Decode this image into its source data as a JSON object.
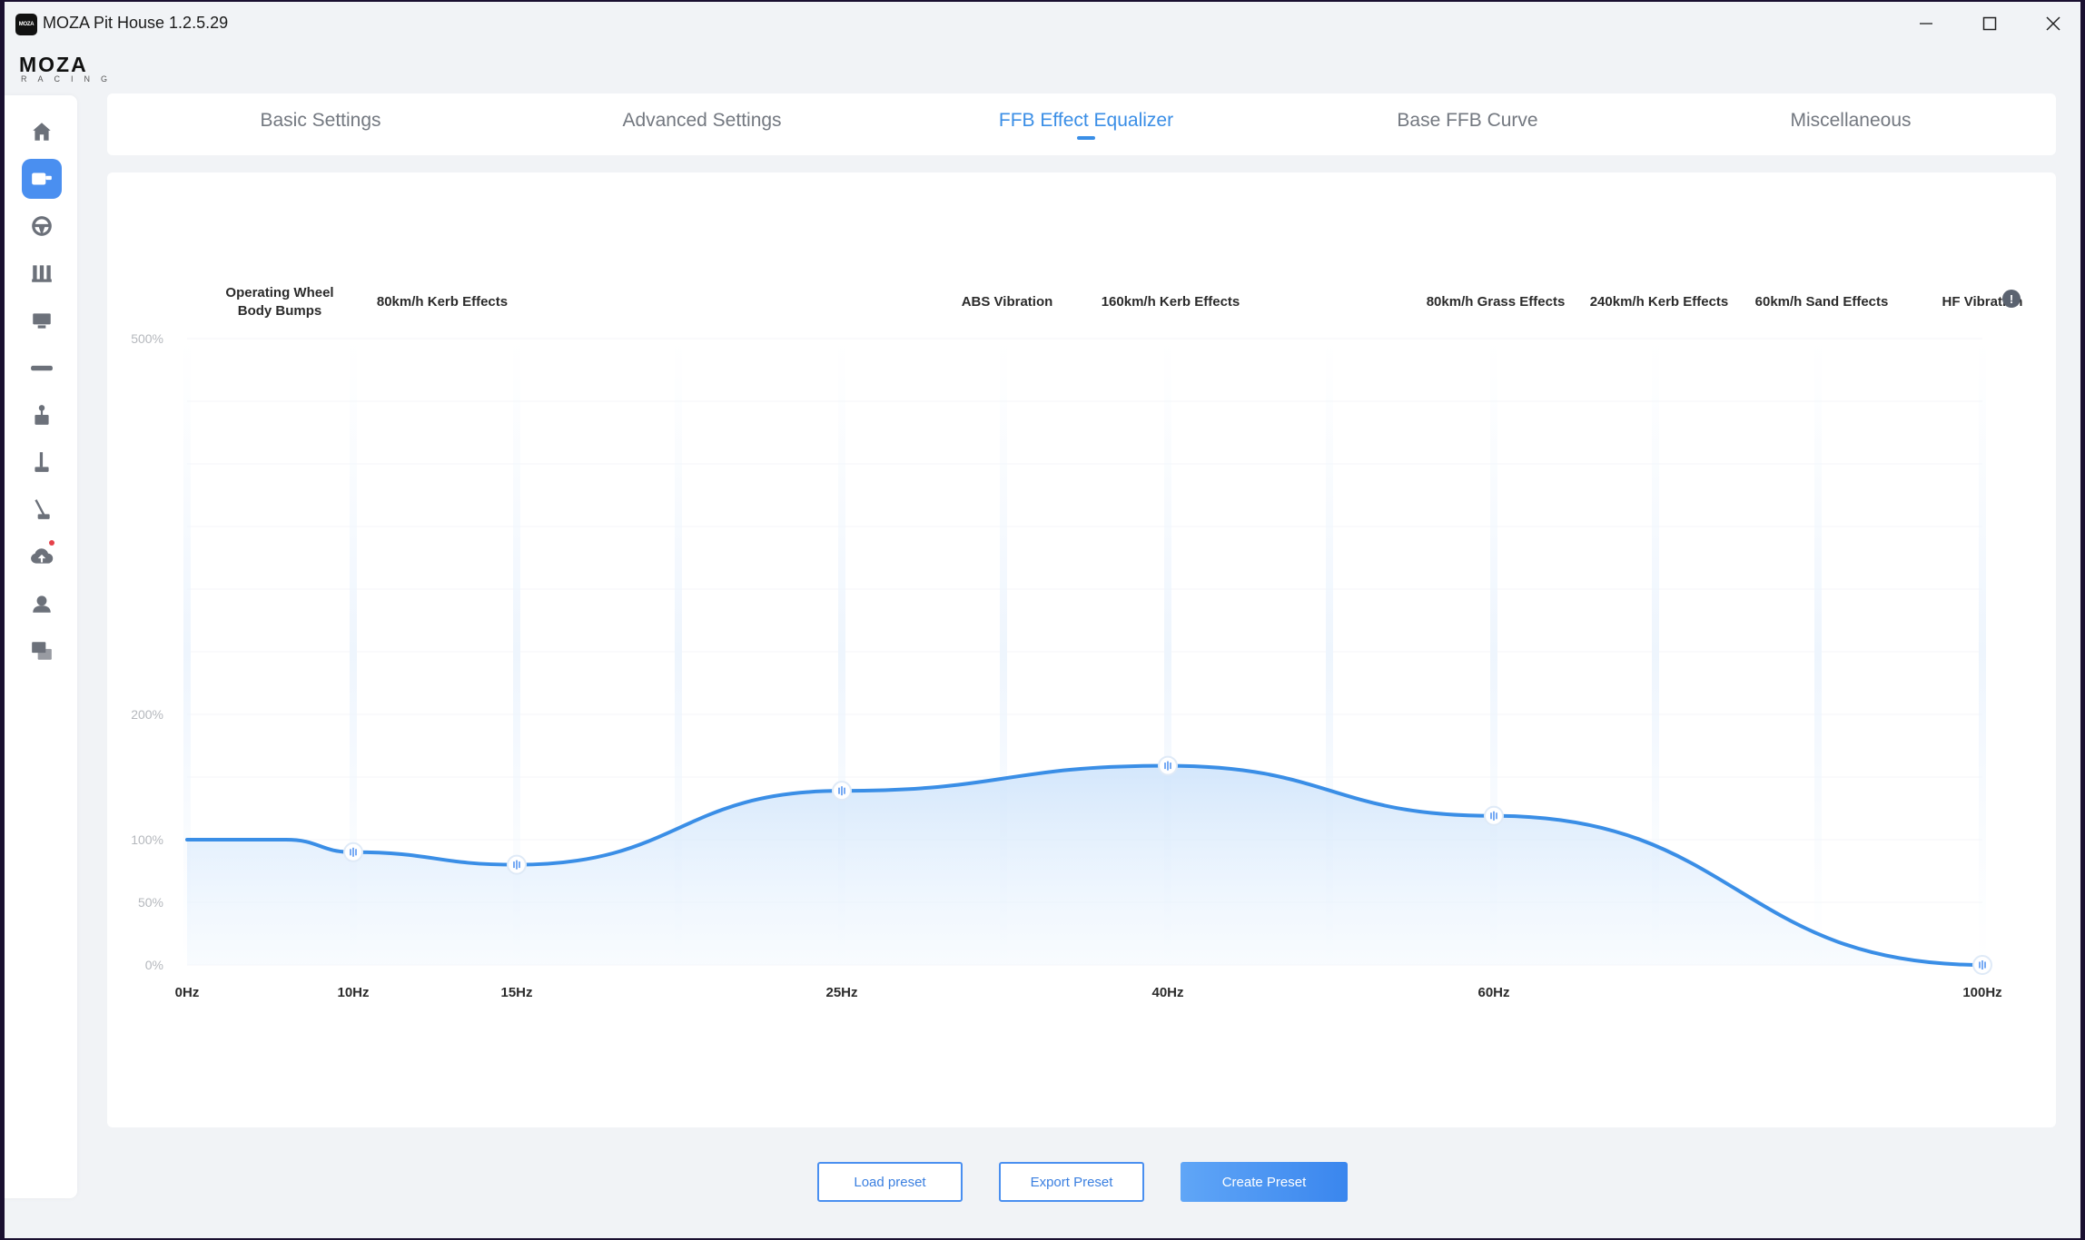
{
  "window": {
    "title": "MOZA Pit House 1.2.5.29",
    "icon_text": "MOZA",
    "controls": [
      "minimize",
      "maximize",
      "close"
    ]
  },
  "logo": {
    "main": "MOZA",
    "sub": "RACING"
  },
  "sidebar": {
    "items": [
      {
        "icon": "home-icon",
        "active": false
      },
      {
        "icon": "wheelbase-icon",
        "active": true
      },
      {
        "icon": "steering-wheel-icon",
        "active": false
      },
      {
        "icon": "pedals-icon",
        "active": false
      },
      {
        "icon": "dashboard-icon",
        "active": false
      },
      {
        "icon": "handbrake-bar-icon",
        "active": false
      },
      {
        "icon": "shifter-icon",
        "active": false
      },
      {
        "icon": "sequential-shifter-icon",
        "active": false
      },
      {
        "icon": "handbrake-icon",
        "active": false
      },
      {
        "icon": "cloud-upload-icon",
        "active": false,
        "notification": true
      },
      {
        "icon": "user-icon",
        "active": false
      },
      {
        "icon": "qa-icon",
        "active": false
      }
    ]
  },
  "tabs": [
    {
      "label": "Basic Settings",
      "active": false
    },
    {
      "label": "Advanced Settings",
      "active": false
    },
    {
      "label": "FFB Effect Equalizer",
      "active": true
    },
    {
      "label": "Base FFB Curve",
      "active": false
    },
    {
      "label": "Miscellaneous",
      "active": false
    }
  ],
  "chart_data": {
    "type": "area",
    "y_ticks": [
      "500%",
      "200%",
      "100%",
      "50%",
      "0%"
    ],
    "ylim": [
      0,
      500
    ],
    "x_categories": [
      "0Hz",
      "10Hz",
      "15Hz",
      "25Hz",
      "40Hz",
      "60Hz",
      "100Hz"
    ],
    "effect_labels": [
      "Operating Wheel Body Bumps",
      "80km/h Kerb Effects",
      "ABS Vibration",
      "160km/h Kerb Effects",
      "80km/h Grass Effects",
      "240km/h Kerb Effects",
      "60km/h Sand Effects",
      "HF Vibration"
    ],
    "series": [
      {
        "x": [
          "0Hz",
          "10Hz",
          "15Hz",
          "25Hz",
          "40Hz",
          "60Hz",
          "100Hz"
        ],
        "values": [
          100,
          90,
          80,
          139,
          159,
          119,
          0
        ]
      }
    ],
    "colors": {
      "line": "#3a8ee6",
      "fill": "#e3f0fd"
    }
  },
  "buttons": {
    "load": "Load preset",
    "export": "Export Preset",
    "create": "Create Preset"
  }
}
